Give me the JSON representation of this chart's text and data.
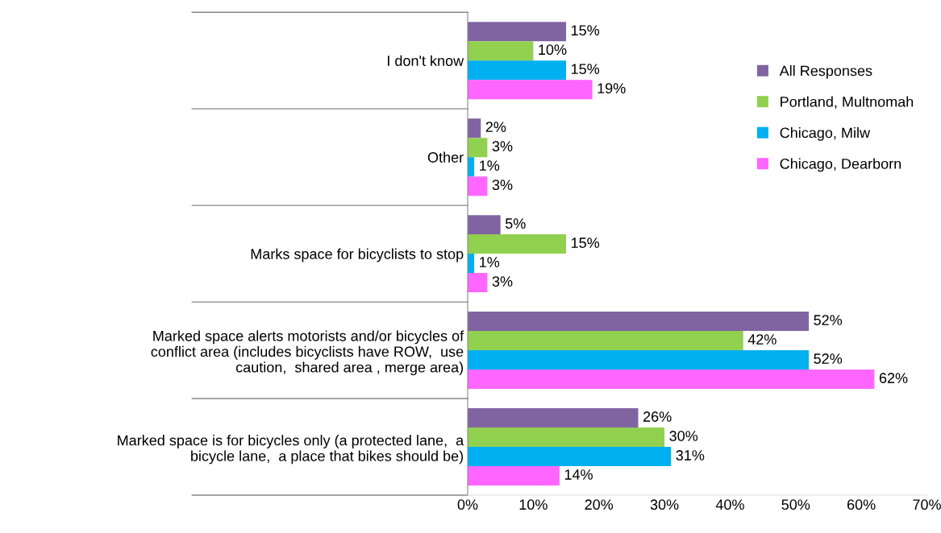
{
  "chart_data": {
    "type": "bar",
    "orientation": "horizontal",
    "categories": [
      "I don't know",
      "Other",
      "Marks space for bicyclists to stop",
      "Marked space alerts motorists and/or bicycles of\nconflict area (includes bicyclists have ROW,  use\ncaution,  shared area , merge area)",
      "Marked space is for bicycles only (a protected lane,  a\nbicycle lane,  a place that bikes should be)"
    ],
    "series": [
      {
        "name": "All Responses",
        "color": "#8064a2",
        "values": [
          15,
          2,
          5,
          52,
          26
        ],
        "value_labels": [
          "15%",
          "2%",
          "5%",
          "52%",
          "26%"
        ]
      },
      {
        "name": "Portland, Multnomah",
        "color": "#92d050",
        "values": [
          10,
          3,
          15,
          42,
          30
        ],
        "value_labels": [
          "10%",
          "3%",
          "15%",
          "42%",
          "30%"
        ]
      },
      {
        "name": "Chicago, Milw",
        "color": "#00b0f0",
        "values": [
          15,
          1,
          1,
          52,
          31
        ],
        "value_labels": [
          "15%",
          "1%",
          "1%",
          "52%",
          "31%"
        ]
      },
      {
        "name": "Chicago, Dearborn",
        "color": "#ff66ff",
        "values": [
          19,
          3,
          3,
          62,
          14
        ],
        "value_labels": [
          "19%",
          "3%",
          "3%",
          "62%",
          "14%"
        ]
      }
    ],
    "xlim": [
      0,
      70
    ],
    "xticks": [
      {
        "value": 0,
        "label": "0%"
      },
      {
        "value": 10,
        "label": "10%"
      },
      {
        "value": 20,
        "label": "20%"
      },
      {
        "value": 30,
        "label": "30%"
      },
      {
        "value": 40,
        "label": "40%"
      },
      {
        "value": 50,
        "label": "50%"
      },
      {
        "value": 60,
        "label": "60%"
      },
      {
        "value": 70,
        "label": "70%"
      }
    ],
    "grid": false,
    "legend": "right"
  }
}
